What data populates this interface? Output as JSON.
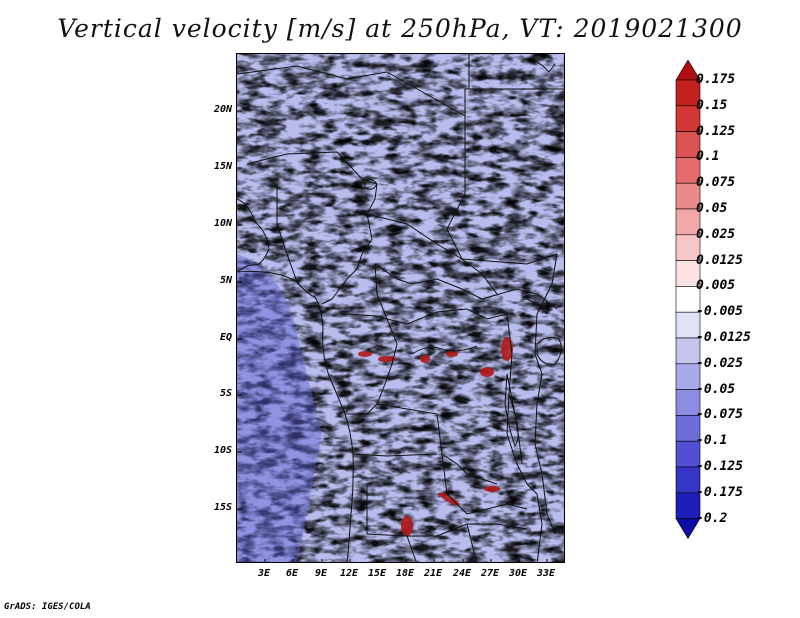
{
  "title": "Vertical velocity [m/s] at 250hPa, VT: 2019021300",
  "credit": "GrADS: IGES/COLA",
  "map": {
    "region": "Central Africa",
    "lat_labels": [
      "20N",
      "15N",
      "10N",
      "5N",
      "EQ",
      "5S",
      "10S",
      "15S"
    ],
    "lon_labels": [
      "3E",
      "6E",
      "9E",
      "12E",
      "15E",
      "18E",
      "21E",
      "24E",
      "27E",
      "30E",
      "33E"
    ],
    "field": "vertical velocity",
    "units": "m/s",
    "level": "250hPa"
  },
  "colorbar": {
    "levels": [
      "0.175",
      "0.15",
      "0.125",
      "0.1",
      "0.075",
      "0.05",
      "0.025",
      "0.0125",
      "0.005",
      "-0.005",
      "-0.0125",
      "-0.025",
      "-0.05",
      "-0.075",
      "-0.1",
      "-0.125",
      "-0.175",
      "-0.2"
    ],
    "colors": [
      "#b21010",
      "#c42020",
      "#d23636",
      "#dd5252",
      "#e46c6c",
      "#eb8a8a",
      "#f2a8a8",
      "#f7c6c6",
      "#fbe2e2",
      "#ffffff",
      "#e1e1f7",
      "#c5c5f0",
      "#a9a9ea",
      "#8c8ce3",
      "#6e6edb",
      "#5050d2",
      "#3434c5",
      "#1e1eb8",
      "#0d0da6"
    ]
  }
}
